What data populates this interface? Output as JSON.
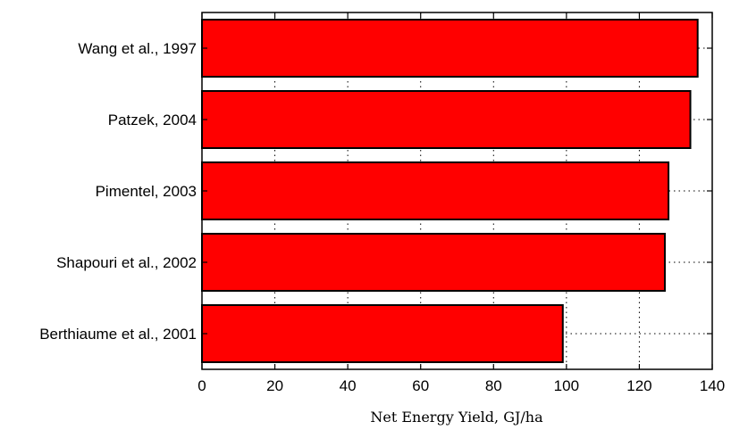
{
  "chart_data": {
    "type": "bar",
    "orientation": "horizontal",
    "categories": [
      "Wang et al., 1997",
      "Patzek, 2004",
      "Pimentel, 2003",
      "Shapouri et al., 2002",
      "Berthiaume et al., 2001"
    ],
    "values": [
      136,
      134,
      128,
      127,
      99
    ],
    "xlabel": "Net Energy Yield, GJ/ha",
    "ylabel": "",
    "xlim": [
      0,
      140
    ],
    "xticks": [
      0,
      20,
      40,
      60,
      80,
      100,
      120,
      140
    ],
    "grid": true,
    "bar_color": "#ff0000",
    "edge_color": "#000000"
  }
}
